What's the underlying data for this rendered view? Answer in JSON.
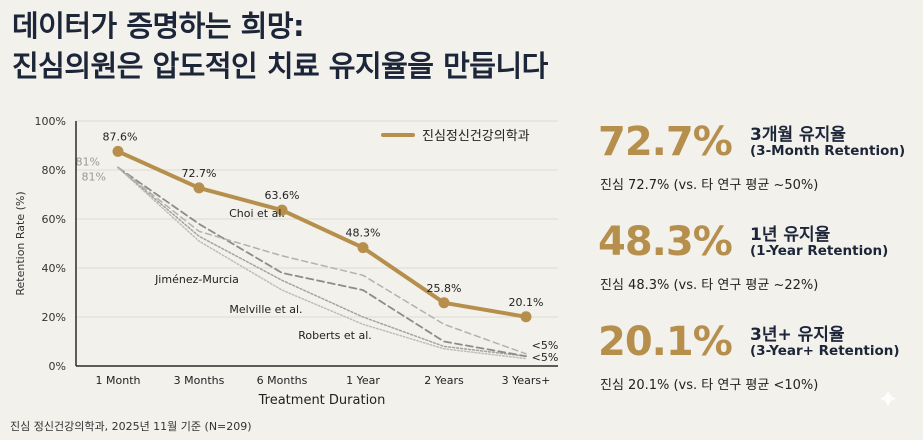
{
  "title": {
    "line1": "데이터가 증명하는 희망:",
    "line2": "진심의원은 압도적인 치료 유지율을 만듭니다"
  },
  "colors": {
    "accent": "#b68f4d",
    "comparison": "#9a9a94",
    "text_dark": "#1c2638",
    "background": "#f2f1ec"
  },
  "chart_data": {
    "type": "line",
    "title": "",
    "xlabel": "Treatment Duration",
    "ylabel": "Retention Rate (%)",
    "ylim": [
      0,
      100
    ],
    "yticks": [
      0,
      20,
      40,
      60,
      80,
      100
    ],
    "ytick_labels": [
      "0%",
      "20%",
      "40%",
      "60%",
      "80%",
      "100%"
    ],
    "categories": [
      "1 Month",
      "3 Months",
      "6 Months",
      "1 Year",
      "2 Years",
      "3 Years+"
    ],
    "grid": true,
    "legend_position": "top-right",
    "series": [
      {
        "name": "진심정신건강의학과",
        "style": "solid",
        "values": [
          87.6,
          72.7,
          63.6,
          48.3,
          25.8,
          20.1
        ],
        "labels": [
          "87.6%",
          "72.7%",
          "63.6%",
          "48.3%",
          "25.8%",
          "20.1%"
        ],
        "in_legend": true
      },
      {
        "name": "Choi et al.",
        "style": "dashed-light",
        "values": [
          81,
          55,
          45,
          37,
          17,
          5
        ]
      },
      {
        "name": "Jiménez-Murcia",
        "style": "dashed-dark",
        "values": [
          81,
          58,
          38,
          31,
          10,
          4
        ]
      },
      {
        "name": "Melville et al.",
        "style": "dotted",
        "values": [
          81,
          53,
          35,
          20,
          8,
          4
        ]
      },
      {
        "name": "Roberts et al.",
        "style": "dotted-light",
        "values": [
          81,
          51,
          31,
          17,
          7,
          3
        ]
      }
    ],
    "annotations": {
      "start_labels": [
        "81%",
        "81%"
      ],
      "end_labels": [
        "<5%",
        "<5%"
      ],
      "series_labels": [
        "Choi et al.",
        "Jiménez-Murcia",
        "Melville et al.",
        "Roberts et al."
      ]
    }
  },
  "stats": [
    {
      "value": "72.7%",
      "label_ko": "3개월 유지율",
      "label_en": "(3-Month Retention)",
      "comparison": "진심 72.7% (vs. 타 연구 평균 ~50%)"
    },
    {
      "value": "48.3%",
      "label_ko": "1년 유지율",
      "label_en": "(1-Year Retention)",
      "comparison": "진심 48.3% (vs. 타 연구 평균 ~22%)"
    },
    {
      "value": "20.1%",
      "label_ko": "3년+ 유지율",
      "label_en": "(3-Year+ Retention)",
      "comparison": "진심 20.1% (vs. 타 연구 평균 <10%)"
    }
  ],
  "footnote": "진심 정신건강의학과, 2025년 11월 기준 (N=209)",
  "icons": {
    "sparkle": "✦"
  }
}
